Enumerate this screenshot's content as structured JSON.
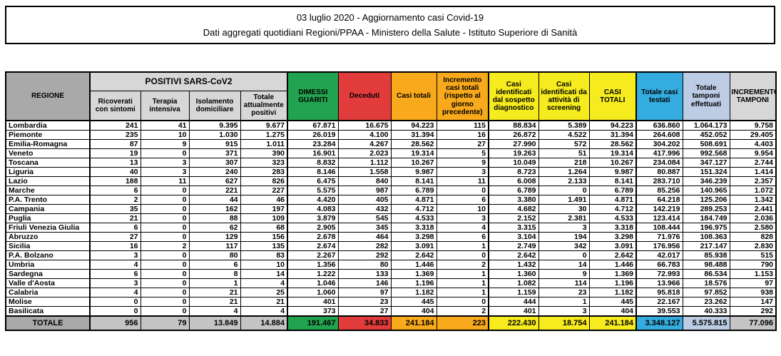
{
  "title": {
    "line1": "03 luglio 2020 - Aggiornamento casi Covid-19",
    "line2": "Dati aggregati quotidiani Regioni/PPAA - Ministero della Salute - Istituto Superiore di Sanità"
  },
  "colors": {
    "header_dark_gray": "#A9A9A9",
    "header_light_gray": "#D7D7D7",
    "total_row_gray": "#C4C4C4",
    "green": "#22A34F",
    "red": "#E23B3C",
    "orange": "#F9A91C",
    "yellow": "#F5EB1E",
    "blue": "#35ACDF",
    "light_blue": "#BDCCE5",
    "border": "#000000"
  },
  "table": {
    "group_header": "POSITIVI SARS-CoV2",
    "columns": [
      {
        "key": "regione",
        "label": "REGIONE",
        "total_bg": "dgray"
      },
      {
        "key": "ricoverati_con_sintomi",
        "label": "Ricoverati con sintomi",
        "thick_left": true,
        "total_bg": "mgray"
      },
      {
        "key": "terapia_intensiva",
        "label": "Terapia intensiva",
        "total_bg": "mgray"
      },
      {
        "key": "isolamento_domiciliare",
        "label": "Isolamento domiciliare",
        "total_bg": "mgray"
      },
      {
        "key": "totale_attualmente_positivi",
        "label": "Totale attualmente positivi",
        "total_bg": "mgray"
      },
      {
        "key": "dimessi_guariti",
        "label": "DIMESSI GUARITI",
        "thick_left": true,
        "total_bg": "green"
      },
      {
        "key": "deceduti",
        "label": "Deceduti",
        "total_bg": "red"
      },
      {
        "key": "casi_totali",
        "label": "Casi totali",
        "total_bg": "orange"
      },
      {
        "key": "incremento_casi_totali",
        "label": "Incremento casi totali (rispetto al giorno precedente)",
        "total_bg": "orange"
      },
      {
        "key": "casi_sospetto_diagnostico",
        "label": "Casi identificati dal sospetto diagnostico",
        "thick_left": true,
        "total_bg": "yellow"
      },
      {
        "key": "casi_screening",
        "label": "Casi identificati da attività di screening",
        "total_bg": "yellow"
      },
      {
        "key": "casi_totali_complessivi",
        "label": "CASI TOTALI",
        "total_bg": "yellow"
      },
      {
        "key": "totale_casi_testati",
        "label": "Totale casi testati",
        "thick_left": true,
        "total_bg": "blue"
      },
      {
        "key": "totale_tamponi_effettuati",
        "label": "Totale tamponi effettuati",
        "total_bg": "lblue"
      },
      {
        "key": "incremento_tamponi",
        "label": "INCREMENTO TAMPONI",
        "total_bg": "mgray"
      }
    ],
    "rows": [
      {
        "region": "Lombardia",
        "values": [
          "241",
          "41",
          "9.395",
          "9.677",
          "67.871",
          "16.675",
          "94.223",
          "115",
          "88.834",
          "5.389",
          "94.223",
          "636.860",
          "1.064.173",
          "9.758"
        ]
      },
      {
        "region": "Piemonte",
        "values": [
          "235",
          "10",
          "1.030",
          "1.275",
          "26.019",
          "4.100",
          "31.394",
          "16",
          "26.872",
          "4.522",
          "31.394",
          "264.608",
          "452.052",
          "29.405"
        ]
      },
      {
        "region": "Emilia-Romagna",
        "values": [
          "87",
          "9",
          "915",
          "1.011",
          "23.284",
          "4.267",
          "28.562",
          "27",
          "27.990",
          "572",
          "28.562",
          "304.202",
          "508.691",
          "4.403"
        ]
      },
      {
        "region": "Veneto",
        "values": [
          "19",
          "0",
          "371",
          "390",
          "16.901",
          "2.023",
          "19.314",
          "5",
          "19.263",
          "51",
          "19.314",
          "417.996",
          "992.568",
          "9.954"
        ]
      },
      {
        "region": "Toscana",
        "values": [
          "13",
          "3",
          "307",
          "323",
          "8.832",
          "1.112",
          "10.267",
          "9",
          "10.049",
          "218",
          "10.267",
          "234.084",
          "347.127",
          "2.744"
        ]
      },
      {
        "region": "Liguria",
        "values": [
          "40",
          "3",
          "240",
          "283",
          "8.146",
          "1.558",
          "9.987",
          "3",
          "8.723",
          "1.264",
          "9.987",
          "80.887",
          "151.324",
          "1.414"
        ]
      },
      {
        "region": "Lazio",
        "values": [
          "188",
          "11",
          "627",
          "826",
          "6.475",
          "840",
          "8.141",
          "11",
          "6.008",
          "2.133",
          "8.141",
          "283.710",
          "346.239",
          "2.357"
        ]
      },
      {
        "region": "Marche",
        "values": [
          "6",
          "0",
          "221",
          "227",
          "5.575",
          "987",
          "6.789",
          "0",
          "6.789",
          "0",
          "6.789",
          "85.256",
          "140.965",
          "1.072"
        ]
      },
      {
        "region": "P.A. Trento",
        "values": [
          "2",
          "0",
          "44",
          "46",
          "4.420",
          "405",
          "4.871",
          "6",
          "3.380",
          "1.491",
          "4.871",
          "64.218",
          "125.206",
          "1.342"
        ]
      },
      {
        "region": "Campania",
        "values": [
          "35",
          "0",
          "162",
          "197",
          "4.083",
          "432",
          "4.712",
          "10",
          "4.682",
          "30",
          "4.712",
          "142.219",
          "289.253",
          "2.441"
        ]
      },
      {
        "region": "Puglia",
        "values": [
          "21",
          "0",
          "88",
          "109",
          "3.879",
          "545",
          "4.533",
          "3",
          "2.152",
          "2.381",
          "4.533",
          "123.414",
          "184.749",
          "2.036"
        ]
      },
      {
        "region": "Friuli Venezia Giulia",
        "values": [
          "6",
          "0",
          "62",
          "68",
          "2.905",
          "345",
          "3.318",
          "4",
          "3.315",
          "3",
          "3.318",
          "108.444",
          "196.975",
          "2.580"
        ]
      },
      {
        "region": "Abruzzo",
        "values": [
          "27",
          "0",
          "129",
          "156",
          "2.678",
          "464",
          "3.298",
          "6",
          "3.104",
          "194",
          "3.298",
          "71.976",
          "108.363",
          "828"
        ]
      },
      {
        "region": "Sicilia",
        "values": [
          "16",
          "2",
          "117",
          "135",
          "2.674",
          "282",
          "3.091",
          "1",
          "2.749",
          "342",
          "3.091",
          "176.956",
          "217.147",
          "2.830"
        ]
      },
      {
        "region": "P.A. Bolzano",
        "values": [
          "3",
          "0",
          "80",
          "83",
          "2.267",
          "292",
          "2.642",
          "0",
          "2.642",
          "0",
          "2.642",
          "42.017",
          "85.938",
          "515"
        ]
      },
      {
        "region": "Umbria",
        "values": [
          "4",
          "0",
          "6",
          "10",
          "1.356",
          "80",
          "1.446",
          "2",
          "1.432",
          "14",
          "1.446",
          "66.783",
          "98.488",
          "790"
        ]
      },
      {
        "region": "Sardegna",
        "values": [
          "6",
          "0",
          "8",
          "14",
          "1.222",
          "133",
          "1.369",
          "1",
          "1.360",
          "9",
          "1.369",
          "72.993",
          "86.534",
          "1.153"
        ]
      },
      {
        "region": "Valle d'Aosta",
        "values": [
          "3",
          "0",
          "1",
          "4",
          "1.046",
          "146",
          "1.196",
          "1",
          "1.082",
          "114",
          "1.196",
          "13.966",
          "18.576",
          "97"
        ]
      },
      {
        "region": "Calabria",
        "values": [
          "4",
          "0",
          "21",
          "25",
          "1.060",
          "97",
          "1.182",
          "1",
          "1.159",
          "23",
          "1.182",
          "95.818",
          "97.852",
          "938"
        ]
      },
      {
        "region": "Molise",
        "values": [
          "0",
          "0",
          "21",
          "21",
          "401",
          "23",
          "445",
          "0",
          "444",
          "1",
          "445",
          "22.167",
          "23.262",
          "147"
        ]
      },
      {
        "region": "Basilicata",
        "values": [
          "0",
          "0",
          "4",
          "4",
          "373",
          "27",
          "404",
          "2",
          "401",
          "3",
          "404",
          "39.553",
          "40.333",
          "292"
        ]
      }
    ],
    "total": {
      "label": "TOTALE",
      "values": [
        "956",
        "79",
        "13.849",
        "14.884",
        "191.467",
        "34.833",
        "241.184",
        "223",
        "222.430",
        "18.754",
        "241.184",
        "3.348.127",
        "5.575.815",
        "77.096"
      ]
    }
  }
}
